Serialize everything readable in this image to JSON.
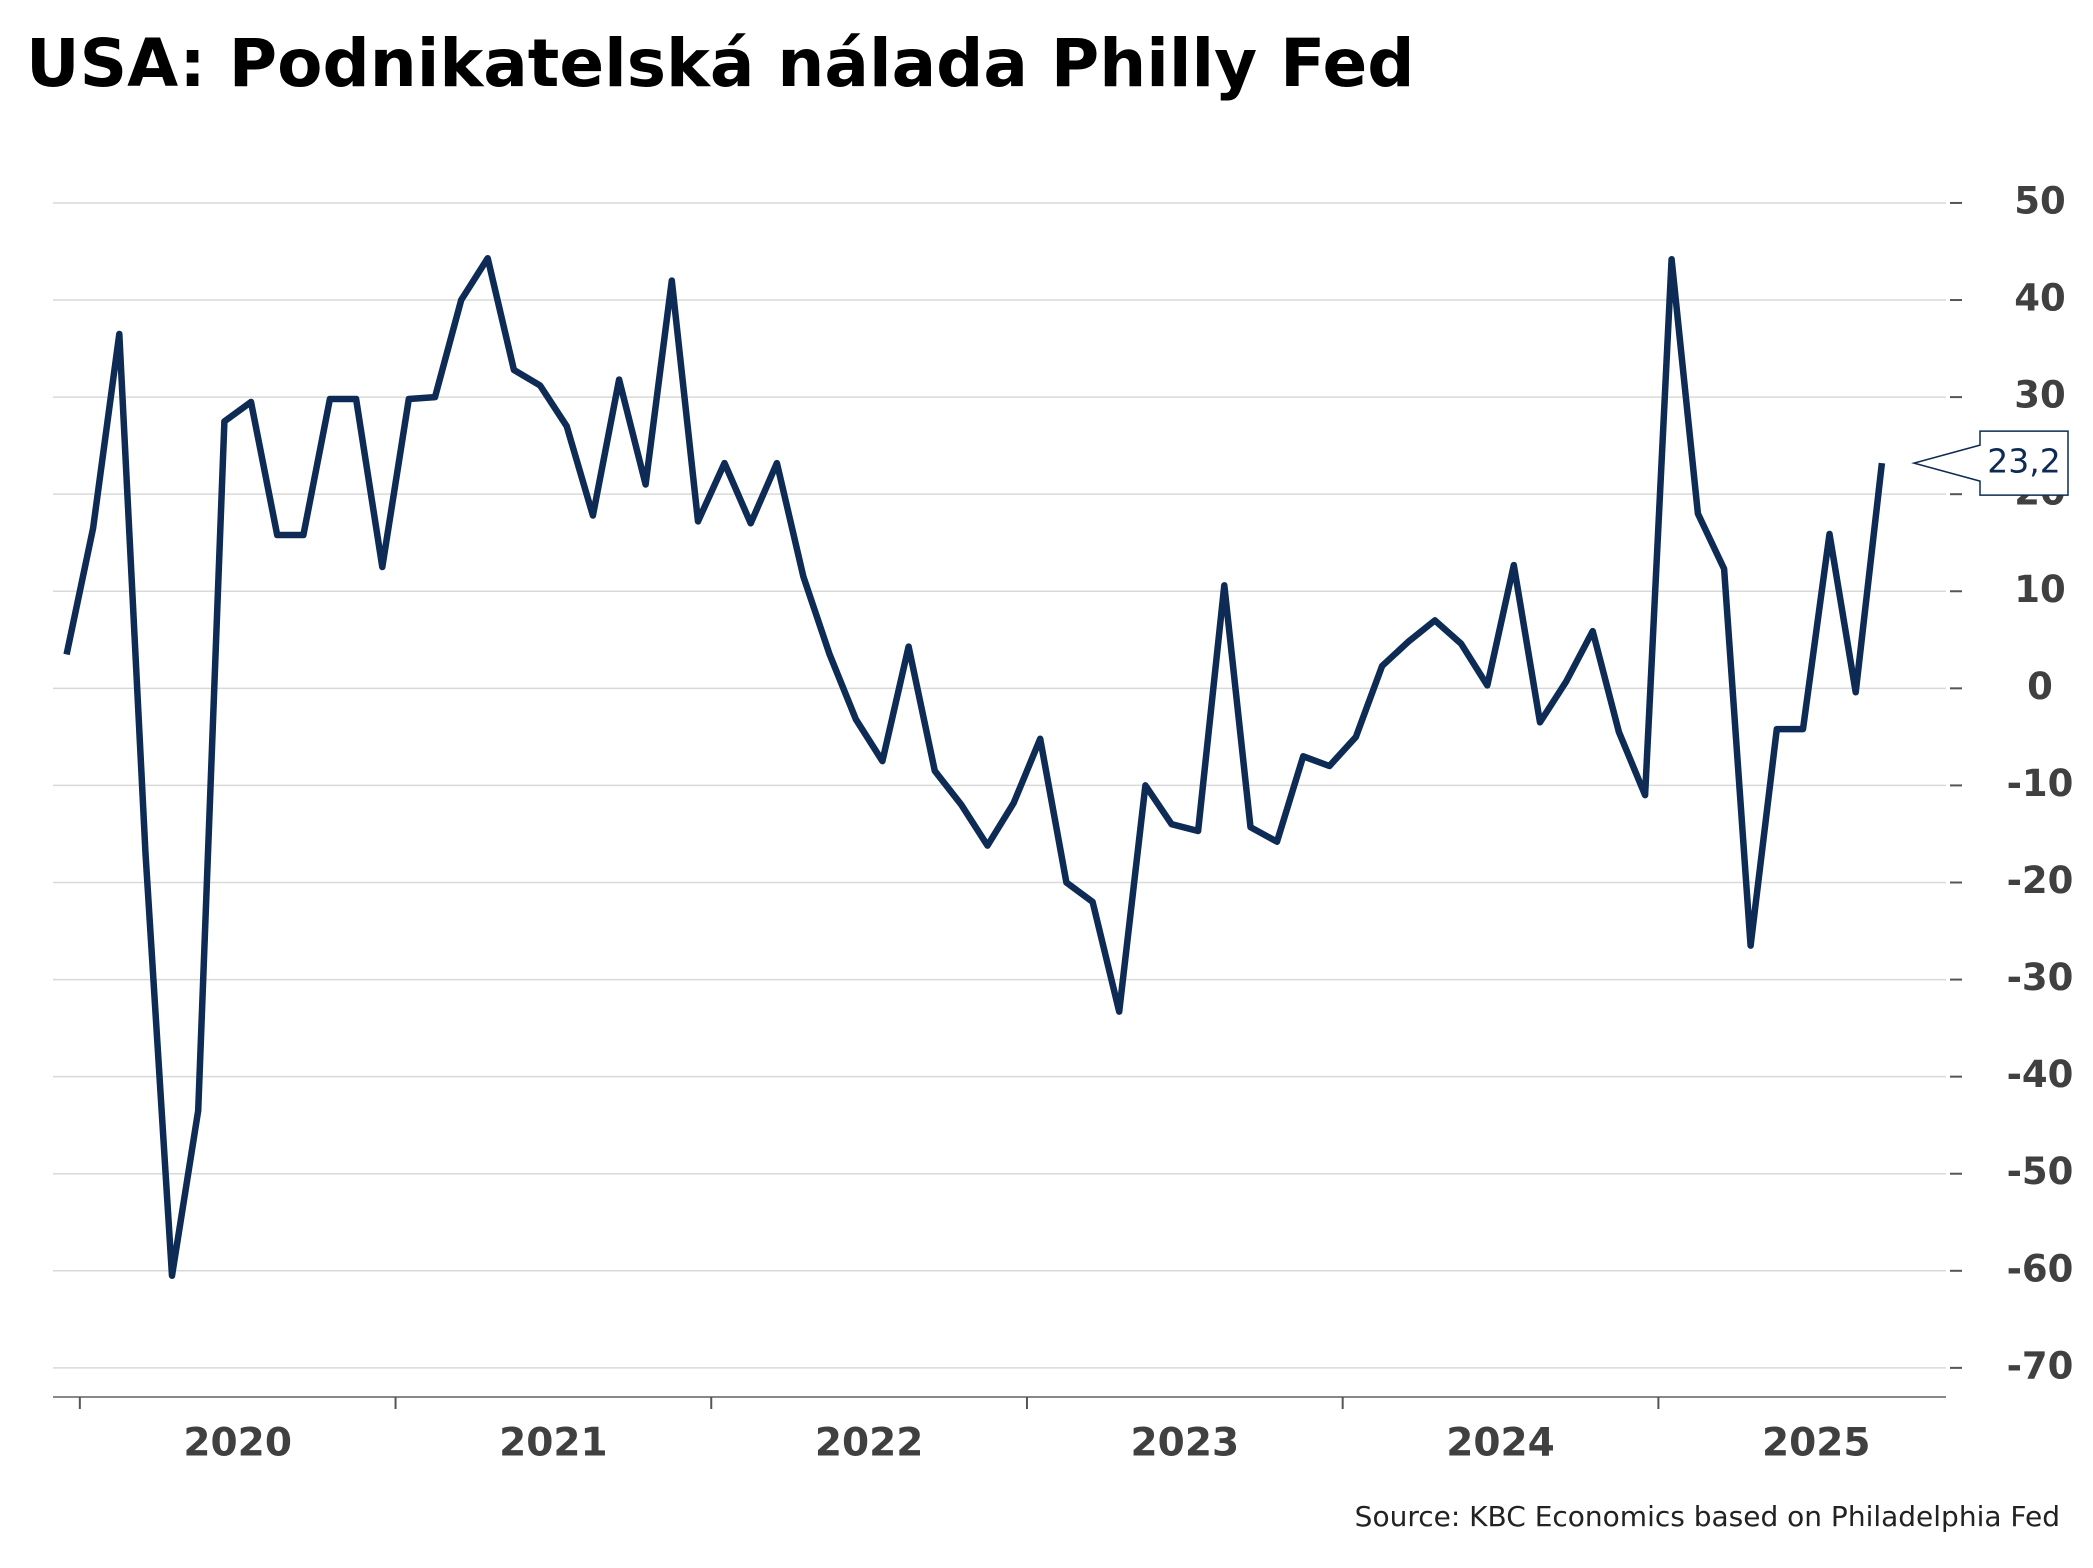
{
  "chart_data": {
    "type": "line",
    "title": "USA: Podnikatelská nálada Philly Fed",
    "source": "Source: KBC Economics based on Philadelphia Fed",
    "color": "#0d2b55",
    "x": [
      2019.958,
      2020.042,
      2020.125,
      2020.208,
      2020.292,
      2020.375,
      2020.458,
      2020.542,
      2020.625,
      2020.708,
      2020.792,
      2020.875,
      2020.958,
      2021.042,
      2021.125,
      2021.208,
      2021.292,
      2021.375,
      2021.458,
      2021.542,
      2021.625,
      2021.708,
      2021.792,
      2021.875,
      2021.958,
      2022.042,
      2022.125,
      2022.208,
      2022.292,
      2022.375,
      2022.458,
      2022.542,
      2022.625,
      2022.708,
      2022.792,
      2022.875,
      2022.958,
      2023.042,
      2023.125,
      2023.208,
      2023.292,
      2023.375,
      2023.458,
      2023.542,
      2023.625,
      2023.708,
      2023.792,
      2023.875,
      2023.958,
      2024.042,
      2024.125,
      2024.208,
      2024.292,
      2024.375,
      2024.458,
      2024.542,
      2024.625,
      2024.708,
      2024.792,
      2024.875,
      2024.958,
      2025.042,
      2025.125,
      2025.208,
      2025.292,
      2025.375,
      2025.458,
      2025.542,
      2025.625,
      2025.708
    ],
    "values": [
      3.5,
      16.5,
      36.5,
      -17,
      -60.5,
      -43.5,
      27.5,
      29.5,
      15.8,
      15.8,
      29.8,
      29.8,
      12.5,
      29.8,
      30,
      40,
      44.3,
      32.8,
      31.2,
      27,
      17.8,
      31.8,
      21,
      42,
      17.2,
      23.2,
      17,
      23.2,
      11.5,
      3.5,
      -3.2,
      -7.5,
      4.3,
      -8.5,
      -12,
      -16.2,
      -11.8,
      -5.2,
      -20,
      -22,
      -33.3,
      -10,
      -14,
      -14.7,
      10.6,
      -14.3,
      -15.8,
      -7,
      -8,
      -5,
      2.3,
      4.8,
      7,
      4.6,
      0.3,
      12.7,
      -3.5,
      0.7,
      5.9,
      -4.5,
      -11,
      44.2,
      18,
      12.3,
      -26.5,
      -4.2,
      -4.2,
      15.9,
      -0.4,
      23.2
    ],
    "value_labels": [
      null,
      null,
      null,
      null,
      null,
      null,
      null,
      null,
      null,
      null,
      null,
      null,
      null,
      null,
      null,
      null,
      null,
      null,
      null,
      null,
      null,
      null,
      null,
      null,
      null,
      null,
      null,
      null,
      null,
      null,
      null,
      null,
      null,
      null,
      null,
      null,
      null,
      null,
      null,
      null,
      null,
      null,
      null,
      null,
      null,
      null,
      null,
      null,
      null,
      null,
      null,
      null,
      null,
      null,
      null,
      null,
      null,
      null,
      null,
      null,
      null,
      null,
      null,
      null,
      null,
      null,
      null,
      null,
      null,
      "23,2"
    ],
    "xlim": [
      2019.915,
      2025.911
    ],
    "xtick_marks": [
      2020,
      2021,
      2022,
      2023,
      2024,
      2025
    ],
    "xticks": [
      {
        "value": 2020.5,
        "label": "2020"
      },
      {
        "value": 2021.5,
        "label": "2021"
      },
      {
        "value": 2022.5,
        "label": "2022"
      },
      {
        "value": 2023.5,
        "label": "2023"
      },
      {
        "value": 2024.5,
        "label": "2024"
      },
      {
        "value": 2025.5,
        "label": "2025"
      }
    ],
    "ylim": [
      -73,
      57
    ],
    "yticks": [
      50,
      40,
      30,
      20,
      10,
      0,
      -10,
      -20,
      -30,
      -40,
      -50,
      -60,
      -70
    ],
    "grid": true
  }
}
